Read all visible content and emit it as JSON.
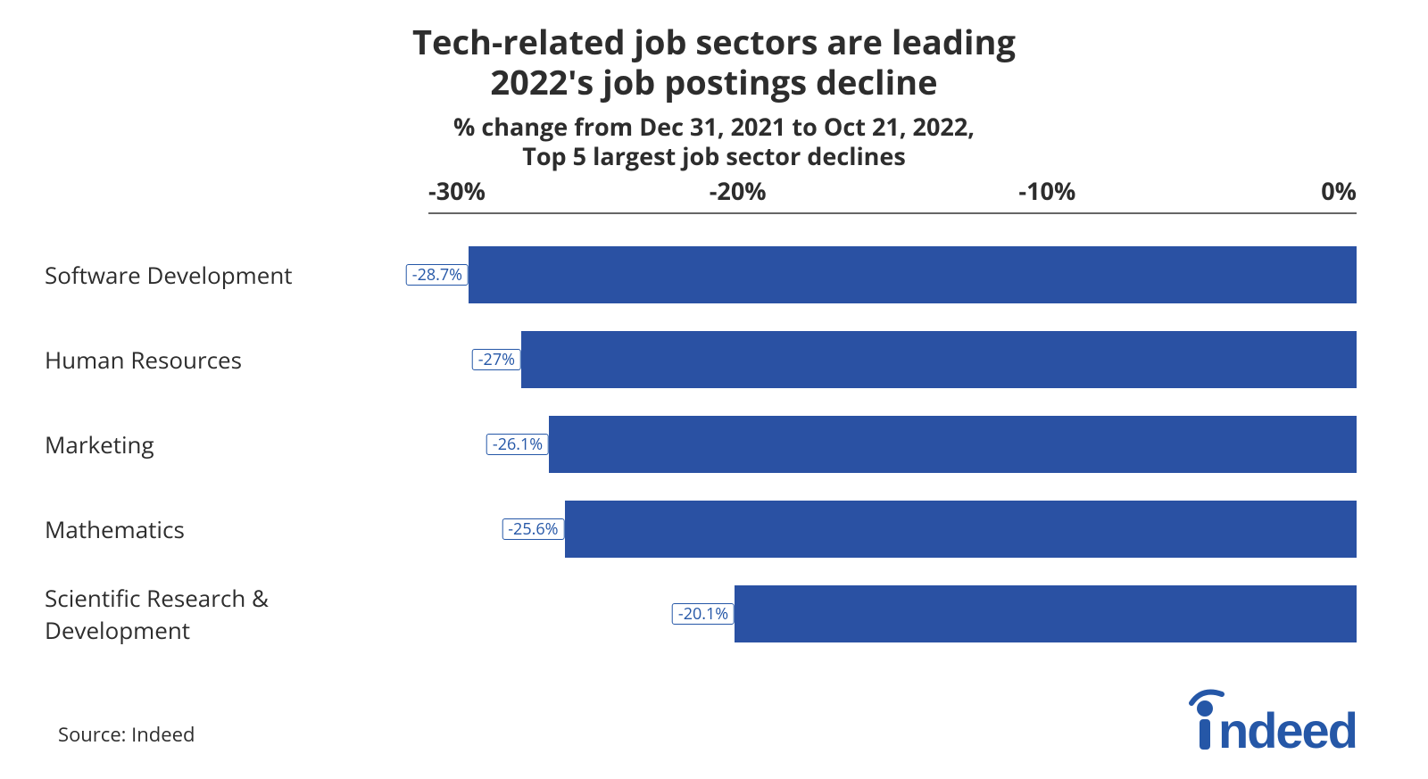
{
  "chart": {
    "type": "bar-horizontal-negative",
    "title": "Tech-related job sectors are leading\n2022's job postings decline",
    "title_fontsize": 38,
    "title_color": "#2d2d2d",
    "subtitle": "% change from Dec 31, 2021 to Oct 21, 2022,\nTop 5 largest job sector declines",
    "subtitle_fontsize": 27,
    "subtitle_color": "#2d2d2d",
    "background_color": "#ffffff",
    "axis_line_color": "#666666",
    "xlim": [
      -30,
      0
    ],
    "xticks": [
      -30,
      -20,
      -10,
      0
    ],
    "xtick_labels": [
      "-30%",
      "-20%",
      "-10%",
      "0%"
    ],
    "xtick_fontsize": 27,
    "ylabel_fontsize": 26,
    "bar_color": "#2a51a3",
    "bar_height_ratio": 0.67,
    "value_label_bg": "#ffffff",
    "value_label_border": "#2557a7",
    "value_label_text_color": "#2557a7",
    "value_label_fontsize": 18,
    "categories": [
      "Software Development",
      "Human Resources",
      "Marketing",
      "Mathematics",
      "Scientific Research & Development"
    ],
    "values": [
      -28.7,
      -27,
      -26.1,
      -25.6,
      -20.1
    ],
    "value_labels": [
      "-28.7%",
      "-27%",
      "-26.1%",
      "-25.6%",
      "-20.1%"
    ]
  },
  "footer": {
    "source": "Source: Indeed",
    "source_fontsize": 22,
    "logo_text": "indeed",
    "logo_color": "#2557a7",
    "logo_fontsize": 56
  }
}
